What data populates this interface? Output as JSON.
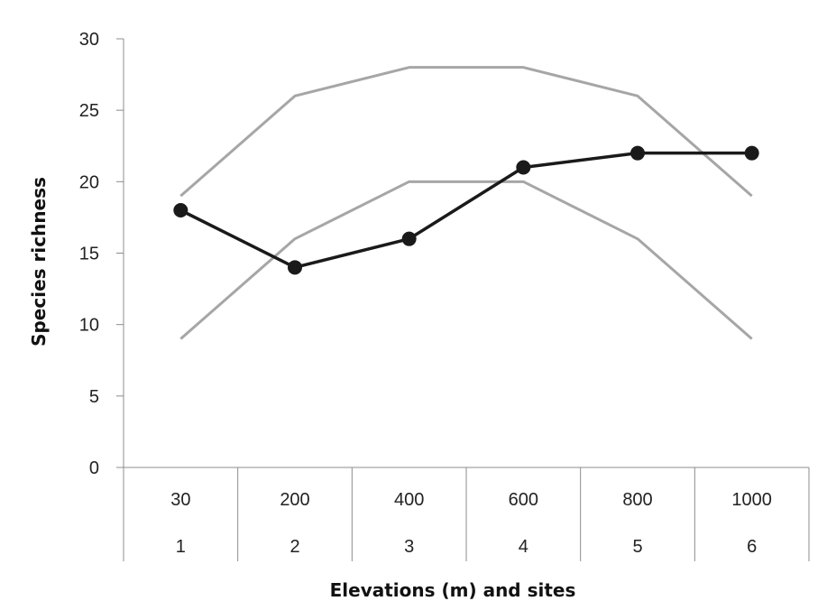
{
  "chart_data": {
    "type": "line",
    "title": "",
    "xlabel": "Elevations (m) and sites",
    "ylabel": "Species richness",
    "ylim": [
      0,
      30
    ],
    "y_ticks": [
      "0",
      "5",
      "10",
      "15",
      "20",
      "25",
      "30"
    ],
    "categories": [
      {
        "elevation": "30",
        "site": "1"
      },
      {
        "elevation": "200",
        "site": "2"
      },
      {
        "elevation": "400",
        "site": "3"
      },
      {
        "elevation": "600",
        "site": "4"
      },
      {
        "elevation": "800",
        "site": "5"
      },
      {
        "elevation": "1000",
        "site": "6"
      }
    ],
    "grid": false,
    "legend": "none",
    "series": [
      {
        "values": [
          19,
          26,
          28,
          28,
          26,
          19
        ],
        "color": "#a6a6a6",
        "markers": false
      },
      {
        "values": [
          9,
          16,
          20,
          20,
          16,
          9
        ],
        "color": "#a6a6a6",
        "markers": false
      },
      {
        "values": [
          18,
          14,
          16,
          21,
          22,
          22
        ],
        "color": "#1a1a1a",
        "markers": true
      }
    ]
  }
}
